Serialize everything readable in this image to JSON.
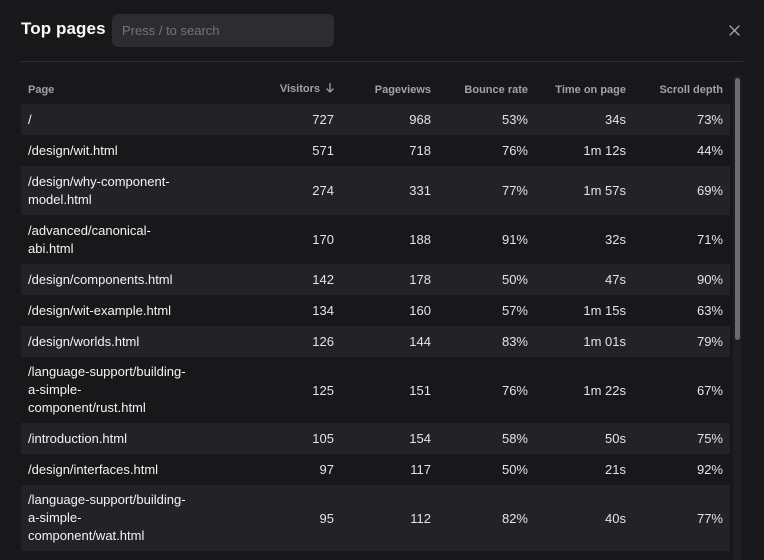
{
  "modal": {
    "title": "Top pages",
    "search": {
      "placeholder": "Press / to search"
    },
    "close_icon": "close-icon"
  },
  "table": {
    "columns": [
      "Page",
      "Visitors",
      "Pageviews",
      "Bounce rate",
      "Time on page",
      "Scroll depth"
    ],
    "sorted_column": "Visitors",
    "sort_direction": "descending",
    "rows": [
      [
        "/",
        "727",
        "968",
        "53%",
        "34s",
        "73%"
      ],
      [
        "/design/wit.html",
        "571",
        "718",
        "76%",
        "1m 12s",
        "44%"
      ],
      [
        "/design/why-component-model.html",
        "274",
        "331",
        "77%",
        "1m 57s",
        "69%"
      ],
      [
        "/advanced/canonical-abi.html",
        "170",
        "188",
        "91%",
        "32s",
        "71%"
      ],
      [
        "/design/components.html",
        "142",
        "178",
        "50%",
        "47s",
        "90%"
      ],
      [
        "/design/wit-example.html",
        "134",
        "160",
        "57%",
        "1m 15s",
        "63%"
      ],
      [
        "/design/worlds.html",
        "126",
        "144",
        "83%",
        "1m 01s",
        "79%"
      ],
      [
        "/language-support/building-a-simple-component/rust.html",
        "125",
        "151",
        "76%",
        "1m 22s",
        "67%"
      ],
      [
        "/introduction.html",
        "105",
        "154",
        "58%",
        "50s",
        "75%"
      ],
      [
        "/design/interfaces.html",
        "97",
        "117",
        "50%",
        "21s",
        "92%"
      ],
      [
        "/language-support/building-a-simple-component/wat.html",
        "95",
        "112",
        "82%",
        "40s",
        "77%"
      ]
    ]
  }
}
